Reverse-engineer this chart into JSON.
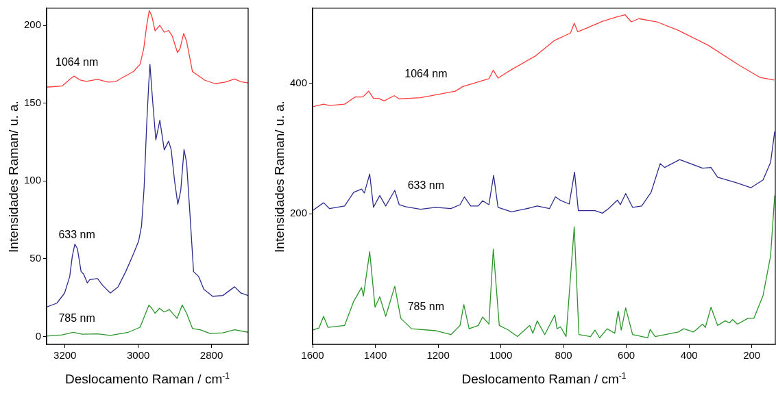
{
  "chart_data": [
    {
      "type": "line",
      "xlabel": "Deslocamento Raman / cm$^{-1}$",
      "ylabel": "Intensidades Raman/ u. a.",
      "xlim": [
        3250,
        2700
      ],
      "ylim": [
        -5,
        211
      ],
      "xticks": [
        3200,
        3000,
        2800
      ],
      "yticks": [
        0,
        50,
        100,
        150,
        200
      ],
      "marker": "none",
      "line_style": "solid",
      "series": [
        {
          "name": "1064 nm",
          "color": "#ff3b3b",
          "x": [
            3250,
            3208,
            3187,
            3175,
            3160,
            3142,
            3111,
            3083,
            3062,
            3041,
            3013,
            2995,
            2985,
            2977,
            2970,
            2963,
            2954,
            2941,
            2929,
            2917,
            2907,
            2893,
            2886,
            2876,
            2868,
            2852,
            2838,
            2818,
            2790,
            2762,
            2737,
            2720,
            2700
          ],
          "values": [
            160.3,
            161,
            165.2,
            167.4,
            165,
            164,
            165.3,
            163.5,
            163.8,
            166.7,
            170.3,
            175,
            185,
            199.8,
            209.4,
            206,
            196.4,
            200,
            195.6,
            196.7,
            193,
            182.5,
            185,
            194.8,
            189.8,
            170.3,
            168,
            164.7,
            162.5,
            163.5,
            165.5,
            163.8,
            163
          ]
        },
        {
          "name": "633 nm",
          "color": "#2b2b8f",
          "x": [
            3250,
            3222,
            3201,
            3187,
            3180,
            3173,
            3166,
            3156,
            3149,
            3139,
            3132,
            3111,
            3097,
            3076,
            3055,
            3034,
            3013,
            2999,
            2991,
            2984,
            2977,
            2971,
            2968,
            2961,
            2952,
            2941,
            2929,
            2917,
            2910,
            2901,
            2892,
            2884,
            2875,
            2868,
            2859,
            2849,
            2835,
            2821,
            2797,
            2769,
            2737,
            2720,
            2700
          ],
          "values": [
            19,
            21.5,
            28,
            38.6,
            51.6,
            59.4,
            56.5,
            41.8,
            40.2,
            34.5,
            36.6,
            37.3,
            32.9,
            28,
            32,
            41.8,
            53.2,
            61.3,
            71,
            95.5,
            136,
            163.8,
            174.9,
            152.4,
            126.4,
            139,
            120,
            125.6,
            120,
            100.4,
            85,
            93.8,
            120.2,
            111.8,
            79.2,
            41.8,
            38.6,
            30.4,
            25.9,
            26.4,
            32,
            28,
            26.4
          ]
        },
        {
          "name": "785 nm",
          "color": "#2a962a",
          "x": [
            3250,
            3208,
            3177,
            3153,
            3111,
            3076,
            3027,
            2995,
            2981,
            2971,
            2963,
            2954,
            2942,
            2929,
            2915,
            2894,
            2880,
            2868,
            2852,
            2831,
            2804,
            2769,
            2737,
            2700
          ],
          "values": [
            0.3,
            1.1,
            2.8,
            1.5,
            1.8,
            0.8,
            2.8,
            6,
            14.2,
            20.2,
            18.2,
            15,
            18.2,
            15.8,
            17.4,
            11.7,
            20.3,
            15,
            5.2,
            4.4,
            2,
            2.4,
            4.4,
            2.8
          ]
        }
      ]
    },
    {
      "type": "line",
      "xlabel": "Deslocamento Raman / cm$^{-1}$",
      "ylabel": "Intensidades Raman/ u. a.",
      "xlim": [
        1600,
        125
      ],
      "ylim": [
        0,
        515
      ],
      "xticks": [
        1600,
        1400,
        1200,
        1000,
        800,
        600,
        400,
        200
      ],
      "yticks": [
        200,
        400
      ],
      "marker": "none",
      "line_style": "solid",
      "series": [
        {
          "name": "1064 nm",
          "color": "#ff3b3b",
          "x": [
            1600,
            1565,
            1546,
            1498,
            1464,
            1440,
            1421,
            1406,
            1390,
            1372,
            1340,
            1324,
            1256,
            1188,
            1145,
            1121,
            1072,
            1038,
            1024,
            1009,
            966,
            889,
            831,
            778,
            766,
            755,
            724,
            676,
            628,
            604,
            584,
            560,
            502,
            434,
            338,
            241,
            174,
            129
          ],
          "values": [
            364,
            368,
            366,
            368,
            379,
            379,
            388,
            377,
            377,
            373,
            381,
            376,
            378,
            384,
            388,
            395,
            402,
            407,
            420,
            408,
            421,
            442,
            465,
            477,
            492,
            479,
            485,
            495,
            502,
            505,
            494,
            499,
            494,
            481,
            458,
            428,
            409,
            405
          ]
        },
        {
          "name": "633 nm",
          "color": "#2b2b8f",
          "x": [
            1600,
            1565,
            1546,
            1498,
            1469,
            1444,
            1435,
            1418,
            1406,
            1386,
            1367,
            1338,
            1324,
            1304,
            1256,
            1208,
            1159,
            1130,
            1116,
            1096,
            1072,
            1058,
            1038,
            1023,
            1009,
            966,
            908,
            884,
            845,
            826,
            811,
            782,
            765,
            753,
            700,
            676,
            657,
            628,
            619,
            602,
            580,
            551,
            521,
            492,
            478,
            430,
            357,
            330,
            309,
            251,
            203,
            164,
            140,
            127
          ],
          "values": [
            205,
            217,
            208,
            212,
            233,
            238,
            232,
            261,
            210,
            228,
            212,
            236,
            214,
            211,
            207,
            210,
            208,
            214,
            226,
            212,
            212,
            220,
            214,
            259,
            210,
            203,
            209,
            212,
            208,
            226,
            221,
            215,
            264,
            205,
            205,
            201,
            208,
            221,
            214,
            231,
            210,
            212,
            233,
            277,
            271,
            283,
            270,
            271,
            256,
            248,
            240,
            252,
            279,
            326
          ]
        },
        {
          "name": "785 nm",
          "color": "#2a962a",
          "x": [
            1600,
            1580,
            1565,
            1551,
            1498,
            1469,
            1444,
            1438,
            1418,
            1401,
            1386,
            1367,
            1338,
            1319,
            1285,
            1208,
            1159,
            1130,
            1118,
            1101,
            1072,
            1058,
            1038,
            1024,
            1005,
            976,
            947,
            908,
            898,
            884,
            860,
            828,
            821,
            810,
            792,
            766,
            751,
            714,
            700,
            685,
            661,
            637,
            626,
            616,
            602,
            580,
            532,
            524,
            508,
            434,
            417,
            386,
            357,
            348,
            330,
            309,
            285,
            271,
            261,
            246,
            212,
            193,
            164,
            140,
            127
          ],
          "values": [
            22,
            25,
            43,
            26,
            29,
            66,
            87,
            74,
            142,
            57,
            73,
            43,
            89,
            40,
            24,
            21,
            15,
            29,
            61,
            24,
            29,
            42,
            31,
            146,
            29,
            22,
            12,
            29,
            17,
            36,
            15,
            45,
            24,
            27,
            12,
            180,
            15,
            12,
            22,
            10,
            24,
            17,
            51,
            22,
            56,
            15,
            10,
            23,
            12,
            19,
            24,
            19,
            31,
            26,
            57,
            29,
            36,
            33,
            38,
            31,
            40,
            40,
            75,
            136,
            228
          ]
        }
      ]
    }
  ]
}
